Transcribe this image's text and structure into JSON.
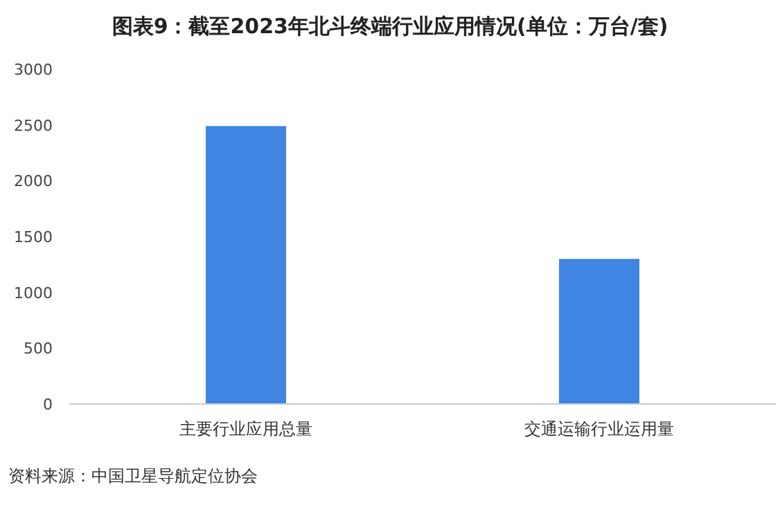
{
  "chart_data": {
    "type": "bar",
    "title": "图表9：截至2023年北斗终端行业应用情况(单位：万台/套)",
    "categories": [
      "主要行业应用总量",
      "交通运输行业运用量"
    ],
    "values": [
      2490,
      1300
    ],
    "color": "#4085e1",
    "ylim": [
      0,
      3000
    ],
    "yticks": [
      0,
      500,
      1000,
      1500,
      2000,
      2500,
      3000
    ],
    "annotations": [
      "资料来源：中国卫星导航定位协会"
    ]
  }
}
